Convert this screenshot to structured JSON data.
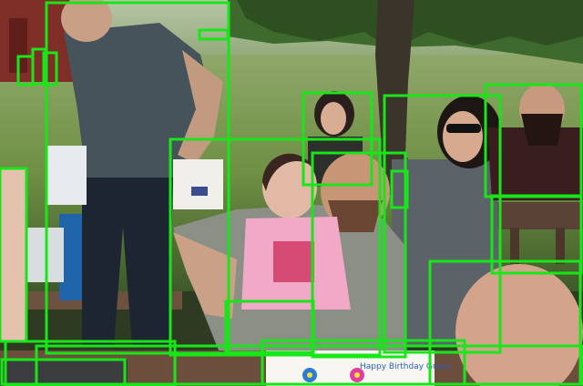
{
  "image": {
    "description_hidden": "",
    "box_color": "#19e619",
    "box_count": 24,
    "cake_text": "Happy Birthday Grace"
  }
}
